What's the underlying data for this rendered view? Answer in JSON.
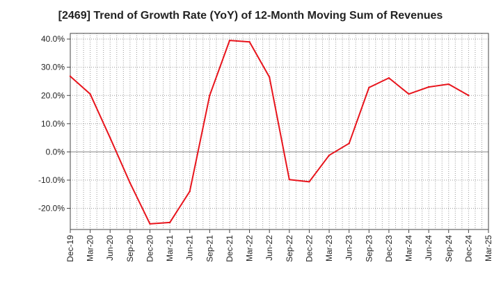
{
  "chart_data": {
    "type": "line",
    "title": "[2469]  Trend of Growth Rate (YoY) of 12-Month Moving Sum of Revenues",
    "xlabel": "",
    "ylabel": "",
    "ylim": [
      -27.5,
      42.0
    ],
    "yticks": [
      40,
      30,
      20,
      10,
      0,
      -10,
      -20
    ],
    "ytick_labels": [
      "40.0%",
      "30.0%",
      "20.0%",
      "10.0%",
      "0.0%",
      "-10.0%",
      "-20.0%"
    ],
    "x_tick_labels": [
      "Dec-19",
      "Mar-20",
      "Jun-20",
      "Sep-20",
      "Dec-20",
      "Mar-21",
      "Jun-21",
      "Sep-21",
      "Dec-21",
      "Mar-22",
      "Jun-22",
      "Sep-22",
      "Dec-22",
      "Mar-23",
      "Jun-23",
      "Sep-23",
      "Dec-23",
      "Mar-24",
      "Jun-24",
      "Sep-24",
      "Dec-24",
      "Mar-25"
    ],
    "grid": true,
    "line_color": "#e8141c",
    "series": [
      {
        "values": [
          26.8,
          20.5,
          5.0,
          -11.0,
          -25.5,
          -25.0,
          -14.0,
          20.0,
          39.5,
          39.0,
          26.5,
          -9.8,
          -10.6,
          -1.2,
          3.0,
          22.8,
          26.2,
          20.5,
          23.0,
          24.0,
          20.0
        ]
      }
    ]
  }
}
